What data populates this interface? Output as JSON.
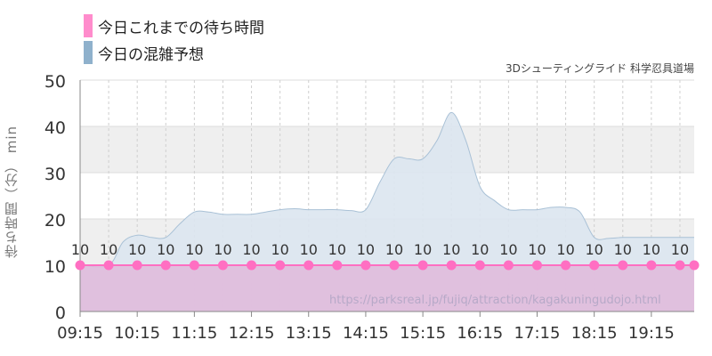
{
  "legend": [
    {
      "label": "今日これまでの待ち時間",
      "color": "#ff8ccc"
    },
    {
      "label": "今日の混雑予想",
      "color": "#8fb1cc"
    }
  ],
  "subtitle": "3Dシューティングライド 科学忍具道場",
  "watermark": "https://parksreal.jp/fujiq/attraction/kagakuningudojo.html",
  "colors": {
    "actual_line": "#ff6fc2",
    "actual_fill": "#e0b8db",
    "forecast_fill": "#dce6ef",
    "forecast_line": "#a9c1d6",
    "band": "#efefef"
  },
  "chart_data": {
    "type": "area",
    "ylabel": "待ち時間（分） min",
    "ylim": [
      0,
      50
    ],
    "yticks": [
      0,
      10,
      20,
      30,
      40,
      50
    ],
    "xticks": [
      "09:15",
      "10:15",
      "11:15",
      "12:15",
      "13:15",
      "14:15",
      "15:15",
      "16:15",
      "17:15",
      "18:15",
      "19:15"
    ],
    "xlim": [
      "09:15",
      "20:00"
    ],
    "grid": true,
    "series": [
      {
        "name": "今日これまでの待ち時間",
        "x": [
          "09:15",
          "09:45",
          "10:15",
          "10:45",
          "11:15",
          "11:45",
          "12:15",
          "12:45",
          "13:15",
          "13:45",
          "14:15",
          "14:45",
          "15:15",
          "15:45",
          "16:15",
          "16:45",
          "17:15",
          "17:45",
          "18:15",
          "18:45",
          "19:15",
          "19:45"
        ],
        "values": [
          10,
          10,
          10,
          10,
          10,
          10,
          10,
          10,
          10,
          10,
          10,
          10,
          10,
          10,
          10,
          10,
          10,
          10,
          10,
          10,
          10,
          10
        ],
        "labels": [
          "10",
          "10",
          "10",
          "10",
          "10",
          "10",
          "10",
          "10",
          "10",
          "10",
          "10",
          "10",
          "10",
          "10",
          "10",
          "10",
          "10",
          "10",
          "10",
          "10",
          "10",
          "10"
        ]
      },
      {
        "name": "今日の混雑予想",
        "x": [
          "09:15",
          "09:45",
          "10:00",
          "10:15",
          "10:30",
          "10:45",
          "11:00",
          "11:15",
          "11:30",
          "11:45",
          "12:00",
          "12:15",
          "12:30",
          "12:45",
          "13:00",
          "13:15",
          "13:30",
          "13:45",
          "14:00",
          "14:15",
          "14:30",
          "14:45",
          "15:00",
          "15:15",
          "15:30",
          "15:45",
          "16:00",
          "16:15",
          "16:30",
          "16:45",
          "17:00",
          "17:15",
          "17:30",
          "17:45",
          "18:00",
          "18:15",
          "18:30",
          "18:45",
          "19:00",
          "19:15",
          "19:30",
          "19:45",
          "20:00"
        ],
        "values": [
          10,
          10,
          15,
          16.5,
          16,
          16,
          19,
          21.5,
          21.5,
          21,
          21,
          21,
          21.5,
          22,
          22.2,
          22,
          22,
          22,
          21.8,
          22,
          28,
          33,
          33,
          33,
          37,
          43,
          37,
          27,
          24,
          22,
          22,
          22,
          22.5,
          22.5,
          21.5,
          16,
          15.8,
          16,
          16,
          16,
          16,
          16,
          16
        ]
      }
    ]
  }
}
